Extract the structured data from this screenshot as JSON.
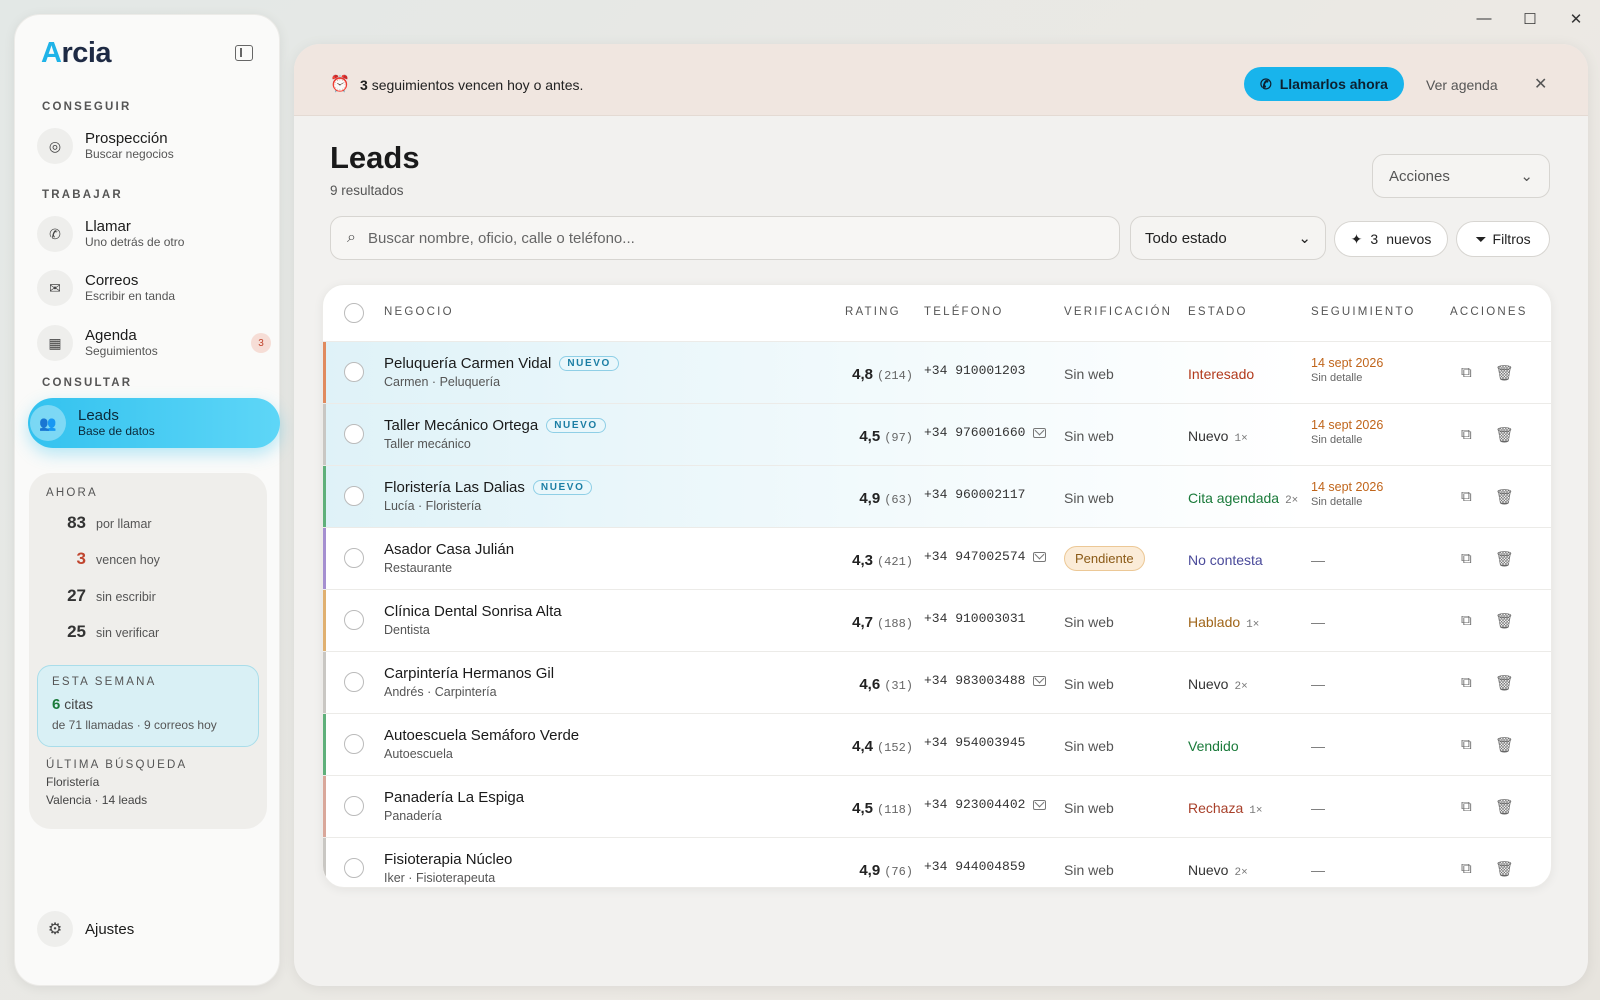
{
  "window": {
    "min": "—",
    "max": "☐",
    "close": "✕"
  },
  "app": {
    "logo_a": "A",
    "logo_rest": "rcia"
  },
  "sidebar": {
    "sections": [
      "CONSEGUIR",
      "TRABAJAR",
      "CONSULTAR"
    ],
    "items": [
      {
        "label": "Prospección",
        "sub": "Buscar negocios"
      },
      {
        "label": "Llamar",
        "sub": "Uno detrás de otro"
      },
      {
        "label": "Correos",
        "sub": "Escribir en tanda"
      },
      {
        "label": "Agenda",
        "sub": "Seguimientos",
        "badge": "3"
      },
      {
        "label": "Leads",
        "sub": "Base de datos"
      }
    ],
    "now_title": "AHORA",
    "stats": [
      {
        "n": "83",
        "label": "por llamar",
        "color": "#333333"
      },
      {
        "n": "3",
        "label": "vencen hoy",
        "color": "#c0452e"
      },
      {
        "n": "27",
        "label": "sin escribir",
        "color": "#333333"
      },
      {
        "n": "25",
        "label": "sin verificar",
        "color": "#333333"
      }
    ],
    "week": {
      "title": "ESTA SEMANA",
      "count": "6",
      "count_label": "citas",
      "detail": "de 71 llamadas · 9 correos hoy"
    },
    "last_search": {
      "title": "ÚLTIMA BÚSQUEDA",
      "query": "Floristería",
      "detail": "Valencia · 14 leads"
    },
    "settings": "Ajustes"
  },
  "banner": {
    "count": "3",
    "text": "seguimientos vencen hoy o antes.",
    "call_button": "Llamarlos ahora",
    "agenda_link": "Ver agenda"
  },
  "page": {
    "title": "Leads",
    "results": "9 resultados",
    "actions": "Acciones"
  },
  "toolbar": {
    "search_placeholder": "Buscar nombre, oficio, calle o teléfono...",
    "status_select": "Todo estado",
    "new_count": "3",
    "new_label": "nuevos",
    "filters": "Filtros"
  },
  "table": {
    "headers": [
      "NEGOCIO",
      "RATING",
      "TELÉFONO",
      "VERIFICACIÓN",
      "ESTADO",
      "SEGUIMIENTO",
      "ACCIONES"
    ],
    "rows": [
      {
        "name": "Peluquería Carmen Vidal",
        "tag": "NUEVO",
        "sub": "Carmen · Peluquería",
        "rating": "4,8",
        "reviews": "(214)",
        "phone": "+34 910001203",
        "mail": false,
        "verification": "Sin web",
        "status": "Interesado",
        "status_color": "#b23a1c",
        "count": "",
        "follow_date": "14 sept 2026",
        "follow_detail": "Sin detalle",
        "stripe": "#e08a5e"
      },
      {
        "name": "Taller Mecánico Ortega",
        "tag": "NUEVO",
        "sub": "Taller mecánico",
        "rating": "4,5",
        "reviews": "(97)",
        "phone": "+34 976001660",
        "mail": true,
        "verification": "Sin web",
        "status": "Nuevo",
        "status_color": "#333333",
        "count": "1×",
        "follow_date": "14 sept 2026",
        "follow_detail": "Sin detalle",
        "stripe": "#c9c7c3"
      },
      {
        "name": "Floristería Las Dalias",
        "tag": "NUEVO",
        "sub": "Lucía · Floristería",
        "rating": "4,9",
        "reviews": "(63)",
        "phone": "+34 960002117",
        "mail": false,
        "verification": "Sin web",
        "status": "Cita agendada",
        "status_color": "#1a7a3a",
        "count": "2×",
        "follow_date": "14 sept 2026",
        "follow_detail": "Sin detalle",
        "stripe": "#5fb07a"
      },
      {
        "name": "Asador Casa Julián",
        "tag": "",
        "sub": "Restaurante",
        "rating": "4,3",
        "reviews": "(421)",
        "phone": "+34 947002574",
        "mail": true,
        "verification": "Pendiente",
        "status": "No contesta",
        "status_color": "#4a4a9a",
        "count": "",
        "follow_date": "",
        "follow_detail": "—",
        "stripe": "#a58fd0"
      },
      {
        "name": "Clínica Dental Sonrisa Alta",
        "tag": "",
        "sub": "Dentista",
        "rating": "4,7",
        "reviews": "(188)",
        "phone": "+34 910003031",
        "mail": false,
        "verification": "Sin web",
        "status": "Hablado",
        "status_color": "#a0661a",
        "count": "1×",
        "follow_date": "",
        "follow_detail": "—",
        "stripe": "#e0b070"
      },
      {
        "name": "Carpintería Hermanos Gil",
        "tag": "",
        "sub": "Andrés · Carpintería",
        "rating": "4,6",
        "reviews": "(31)",
        "phone": "+34 983003488",
        "mail": true,
        "verification": "Sin web",
        "status": "Nuevo",
        "status_color": "#333333",
        "count": "2×",
        "follow_date": "",
        "follow_detail": "—",
        "stripe": "#c9c7c3"
      },
      {
        "name": "Autoescuela Semáforo Verde",
        "tag": "",
        "sub": "Autoescuela",
        "rating": "4,4",
        "reviews": "(152)",
        "phone": "+34 954003945",
        "mail": false,
        "verification": "Sin web",
        "status": "Vendido",
        "status_color": "#1a7a3a",
        "count": "",
        "follow_date": "",
        "follow_detail": "—",
        "stripe": "#5fb07a"
      },
      {
        "name": "Panadería La Espiga",
        "tag": "",
        "sub": "Panadería",
        "rating": "4,5",
        "reviews": "(118)",
        "phone": "+34 923004402",
        "mail": true,
        "verification": "Sin web",
        "status": "Rechaza",
        "status_color": "#a8402a",
        "count": "1×",
        "follow_date": "",
        "follow_detail": "—",
        "stripe": "#d9a79a"
      },
      {
        "name": "Fisioterapia Núcleo",
        "tag": "",
        "sub": "Iker · Fisioterapeuta",
        "rating": "4,9",
        "reviews": "(76)",
        "phone": "+34 944004859",
        "mail": false,
        "verification": "Sin web",
        "status": "Nuevo",
        "status_color": "#333333",
        "count": "2×",
        "follow_date": "",
        "follow_detail": "—",
        "stripe": "#c9c7c3"
      }
    ]
  }
}
